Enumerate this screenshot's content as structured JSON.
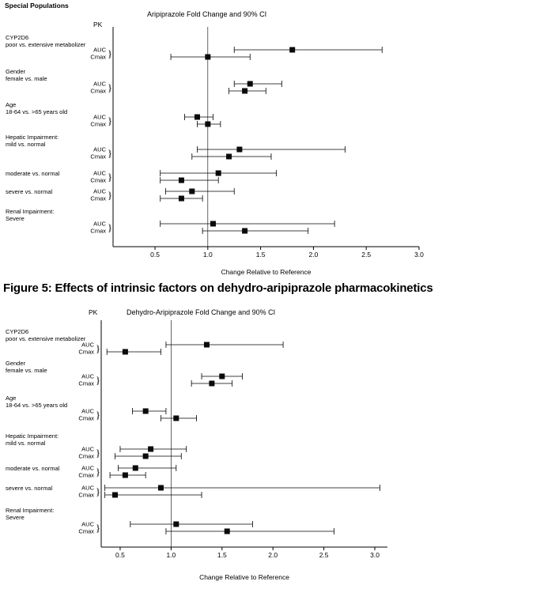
{
  "page": {
    "header": "Special Populations",
    "figure_caption": "Figure 5: Effects of intrinsic factors on dehydro-aripiprazole pharmacokinetics"
  },
  "chart_data": [
    {
      "type": "scatter",
      "subtype": "forest-plot",
      "title": "Aripiprazole Fold Change and 90% CI",
      "pk_column_label": "PK",
      "xlabel": "Change Relative to Reference",
      "xticks": [
        0.5,
        1.0,
        1.5,
        2.0,
        2.5,
        3.0
      ],
      "xlim": [
        0.1,
        3.0
      ],
      "reference_line": 1.0,
      "legend_position": "none",
      "grid": false,
      "groups": [
        {
          "label_lines": [
            "CYP2D6",
            "poor vs. extensive metabolizer"
          ],
          "rows": [
            {
              "measure": "AUC",
              "value": 1.8,
              "lo": 1.25,
              "hi": 2.65
            },
            {
              "measure": "Cmax",
              "value": 1.0,
              "lo": 0.65,
              "hi": 1.4
            }
          ]
        },
        {
          "label_lines": [
            "Gender",
            "female vs. male"
          ],
          "rows": [
            {
              "measure": "AUC",
              "value": 1.4,
              "lo": 1.25,
              "hi": 1.7
            },
            {
              "measure": "Cmax",
              "value": 1.35,
              "lo": 1.2,
              "hi": 1.55
            }
          ]
        },
        {
          "label_lines": [
            "Age",
            "18-64 vs. >65 years old"
          ],
          "rows": [
            {
              "measure": "AUC",
              "value": 0.9,
              "lo": 0.78,
              "hi": 1.05
            },
            {
              "measure": "Cmax",
              "value": 1.0,
              "lo": 0.9,
              "hi": 1.12
            }
          ]
        },
        {
          "label_lines": [
            "Hepatic Impairment:",
            "mild vs. normal"
          ],
          "rows": [
            {
              "measure": "AUC",
              "value": 1.3,
              "lo": 0.9,
              "hi": 2.3
            },
            {
              "measure": "Cmax",
              "value": 1.2,
              "lo": 0.85,
              "hi": 1.6
            }
          ]
        },
        {
          "label_lines": [
            "moderate vs. normal"
          ],
          "rows": [
            {
              "measure": "AUC",
              "value": 1.1,
              "lo": 0.55,
              "hi": 1.65
            },
            {
              "measure": "Cmax",
              "value": 0.75,
              "lo": 0.55,
              "hi": 1.1
            }
          ]
        },
        {
          "label_lines": [
            "severe vs. normal"
          ],
          "rows": [
            {
              "measure": "AUC",
              "value": 0.85,
              "lo": 0.6,
              "hi": 1.25
            },
            {
              "measure": "Cmax",
              "value": 0.75,
              "lo": 0.55,
              "hi": 0.95
            }
          ]
        },
        {
          "label_lines": [
            "Renal Impairment:",
            "Severe"
          ],
          "rows": [
            {
              "measure": "AUC",
              "value": 1.05,
              "lo": 0.55,
              "hi": 2.2
            },
            {
              "measure": "Cmax",
              "value": 1.35,
              "lo": 0.95,
              "hi": 1.95
            }
          ]
        }
      ]
    },
    {
      "type": "scatter",
      "subtype": "forest-plot",
      "title": "Dehydro-Aripiprazole Fold Change and 90% CI",
      "pk_column_label": "PK",
      "xlabel": "Change Relative to Reference",
      "xticks": [
        0.5,
        1.0,
        1.5,
        2.0,
        2.5,
        3.0
      ],
      "xlim": [
        0.31,
        3.12
      ],
      "reference_line": 1.0,
      "legend_position": "none",
      "grid": false,
      "groups": [
        {
          "label_lines": [
            "CYP2D6",
            "poor vs. extensive metabolizer"
          ],
          "rows": [
            {
              "measure": "AUC",
              "value": 1.35,
              "lo": 0.95,
              "hi": 2.1
            },
            {
              "measure": "Cmax",
              "value": 0.55,
              "lo": 0.37,
              "hi": 0.9
            }
          ]
        },
        {
          "label_lines": [
            "Gender",
            "female vs. male"
          ],
          "rows": [
            {
              "measure": "AUC",
              "value": 1.5,
              "lo": 1.3,
              "hi": 1.7
            },
            {
              "measure": "Cmax",
              "value": 1.4,
              "lo": 1.2,
              "hi": 1.6
            }
          ]
        },
        {
          "label_lines": [
            "Age",
            "18-64 vs. >65 years old"
          ],
          "rows": [
            {
              "measure": "AUC",
              "value": 0.75,
              "lo": 0.62,
              "hi": 0.95
            },
            {
              "measure": "Cmax",
              "value": 1.05,
              "lo": 0.9,
              "hi": 1.25
            }
          ]
        },
        {
          "label_lines": [
            "Hepatic Impairment:",
            "mild vs. normal"
          ],
          "rows": [
            {
              "measure": "AUC",
              "value": 0.8,
              "lo": 0.5,
              "hi": 1.15
            },
            {
              "measure": "Cmax",
              "value": 0.75,
              "lo": 0.45,
              "hi": 1.1
            }
          ]
        },
        {
          "label_lines": [
            "moderate vs. normal"
          ],
          "rows": [
            {
              "measure": "AUC",
              "value": 0.65,
              "lo": 0.48,
              "hi": 1.05
            },
            {
              "measure": "Cmax",
              "value": 0.55,
              "lo": 0.4,
              "hi": 0.75
            }
          ]
        },
        {
          "label_lines": [
            "severe vs. normal"
          ],
          "rows": [
            {
              "measure": "AUC",
              "value": 0.9,
              "lo": 0.35,
              "hi": 3.05
            },
            {
              "measure": "Cmax",
              "value": 0.45,
              "lo": 0.35,
              "hi": 1.3
            }
          ]
        },
        {
          "label_lines": [
            "Renal Impairment:",
            "Severe"
          ],
          "rows": [
            {
              "measure": "AUC",
              "value": 1.05,
              "lo": 0.6,
              "hi": 1.8
            },
            {
              "measure": "Cmax",
              "value": 1.55,
              "lo": 0.95,
              "hi": 2.6
            }
          ]
        }
      ]
    }
  ]
}
